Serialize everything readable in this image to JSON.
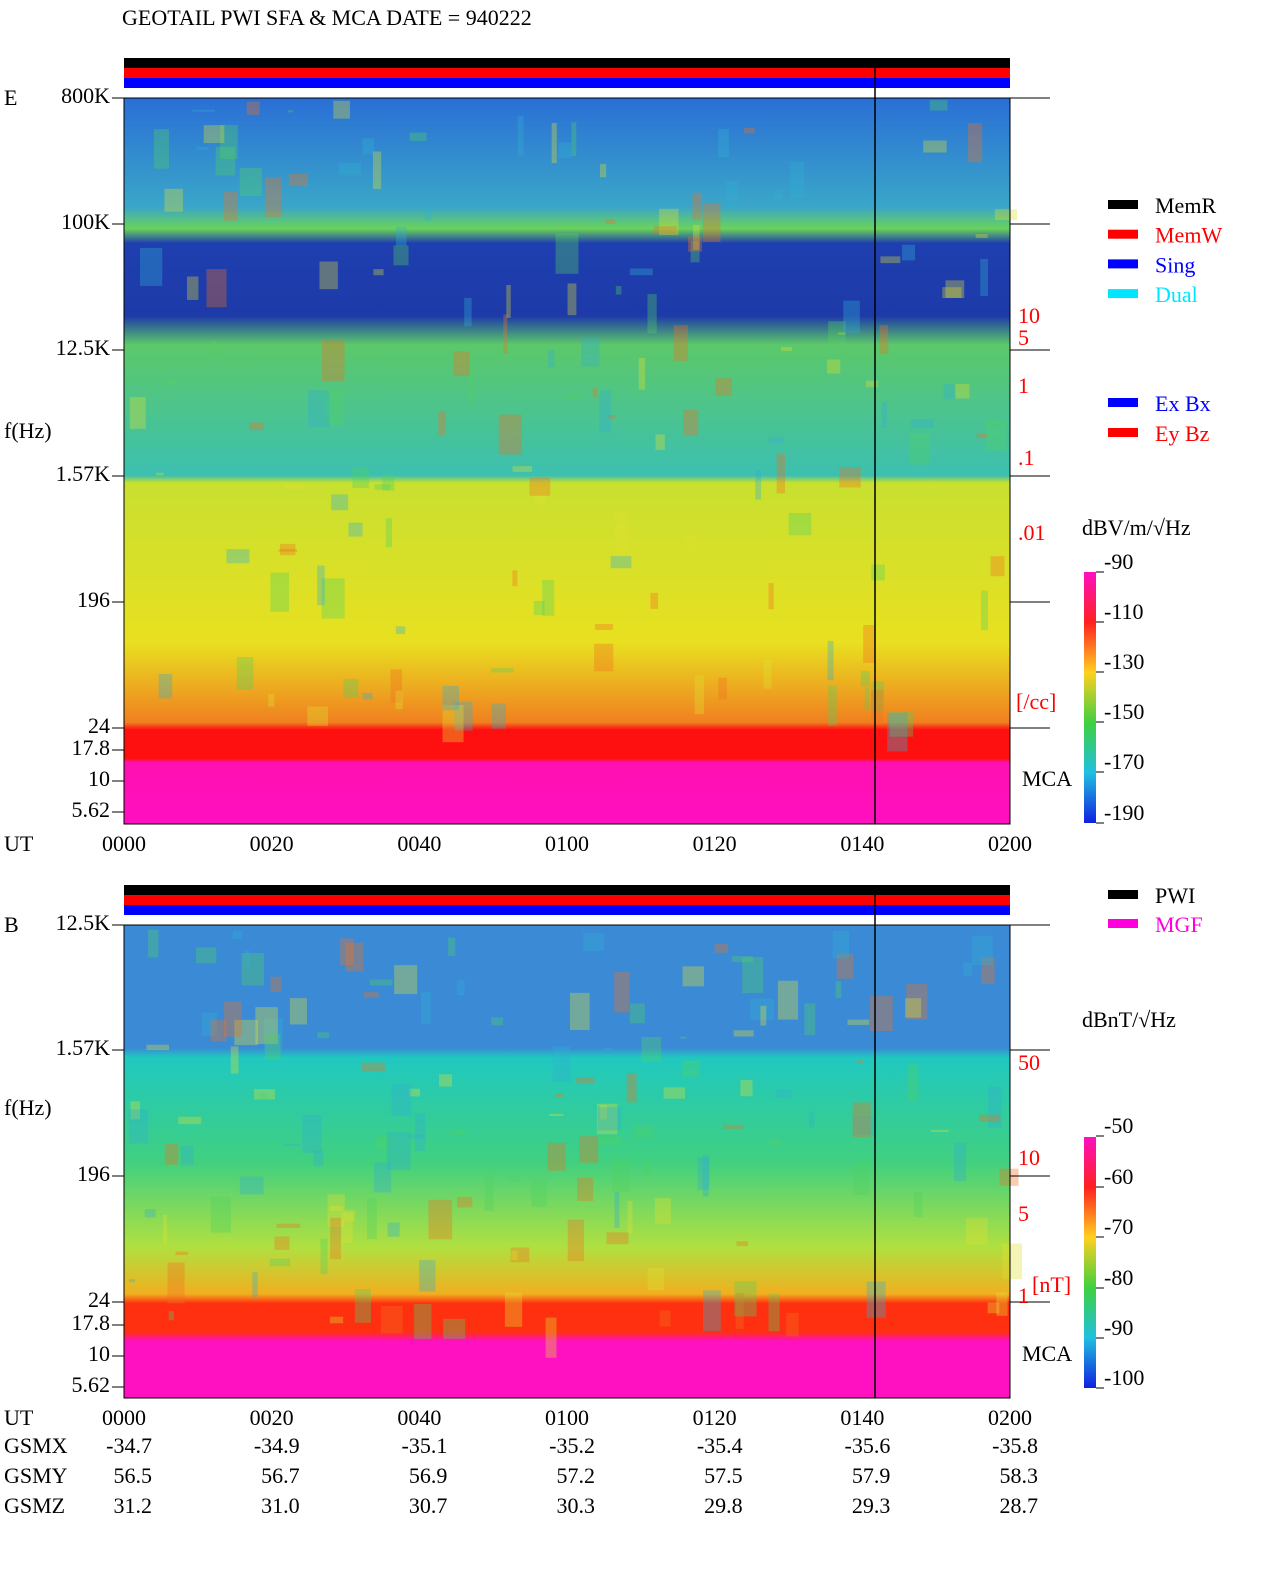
{
  "header": {
    "title": "GEOTAIL  PWI SFA & MCA   DATE = 940222"
  },
  "xaxis": {
    "label": "UT",
    "ticks": [
      "0000",
      "0020",
      "0040",
      "0100",
      "0120",
      "0140",
      "0200"
    ]
  },
  "panels": [
    {
      "label": "E",
      "ylabel": "f(Hz)",
      "yticks": [
        "800K",
        "100K",
        "12.5K",
        "1.57K",
        "196",
        "24",
        "17.8",
        "10",
        "5.62"
      ],
      "density_ticks": [
        "10",
        "5",
        "1",
        ".1",
        ".01"
      ],
      "density_unit": "[/cc]",
      "mca": "MCA",
      "colorbar_unit": "dBV/m/√Hz",
      "colorbar_ticks": [
        "-90",
        "-110",
        "-130",
        "-150",
        "-170",
        "-190"
      ]
    },
    {
      "label": "B",
      "ylabel": "f(Hz)",
      "yticks": [
        "12.5K",
        "1.57K",
        "196",
        "24",
        "17.8",
        "10",
        "5.62"
      ],
      "density_ticks": [
        "50",
        "10",
        "5",
        "1"
      ],
      "density_unit": "[nT]",
      "mca": "MCA",
      "colorbar_unit": "dBnT/√Hz",
      "colorbar_ticks": [
        "-50",
        "-60",
        "-70",
        "-80",
        "-90",
        "-100"
      ]
    }
  ],
  "legend_status": [
    {
      "label": "MemR",
      "color": "#000000"
    },
    {
      "label": "MemW",
      "color": "#ff0000"
    },
    {
      "label": "Sing",
      "color": "#0000ff"
    },
    {
      "label": "Dual",
      "color": "#00e5ff"
    }
  ],
  "legend_component": [
    {
      "label": "Ex Bx",
      "color": "#0000ff"
    },
    {
      "label": "Ey Bz",
      "color": "#ff0000"
    }
  ],
  "legend_source": [
    {
      "label": "PWI",
      "color": "#000000"
    },
    {
      "label": "MGF",
      "color": "#ff00dd"
    }
  ],
  "orbit": {
    "rows": [
      {
        "label": "GSMX",
        "values": [
          "-34.7",
          "-34.9",
          "-35.1",
          "-35.2",
          "-35.4",
          "-35.6",
          "-35.8"
        ]
      },
      {
        "label": "GSMY",
        "values": [
          "56.5",
          "56.7",
          "56.9",
          "57.2",
          "57.5",
          "57.9",
          "58.3"
        ]
      },
      {
        "label": "GSMZ",
        "values": [
          "31.2",
          "31.0",
          "30.7",
          "30.3",
          "29.8",
          "29.3",
          "28.7"
        ]
      }
    ]
  }
}
